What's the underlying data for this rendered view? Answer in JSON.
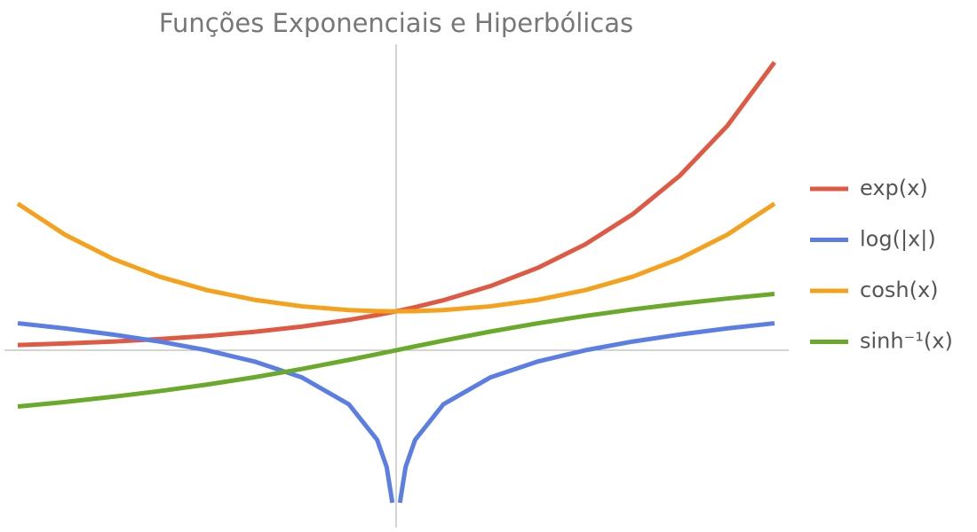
{
  "chart_data": {
    "type": "line",
    "title": "Funções Exponenciais e Hiperbólicas",
    "x": [
      -2,
      -1.75,
      -1.5,
      -1.25,
      -1,
      -0.75,
      -0.5,
      -0.25,
      -0.1,
      -0.05,
      -0.02,
      0,
      0.02,
      0.05,
      0.1,
      0.25,
      0.5,
      0.75,
      1,
      1.25,
      1.5,
      1.75,
      2
    ],
    "series": [
      {
        "name": "exp(x)",
        "color": "#e05a43",
        "values": [
          0.135,
          0.174,
          0.223,
          0.287,
          0.368,
          0.472,
          0.607,
          0.779,
          0.905,
          0.951,
          0.98,
          1,
          1.02,
          1.051,
          1.105,
          1.284,
          1.649,
          2.117,
          2.718,
          3.49,
          4.482,
          5.755,
          7.389
        ]
      },
      {
        "name": "log(|x|)",
        "color": "#5b7ee5",
        "values": [
          0.693,
          0.56,
          0.405,
          0.223,
          0,
          -0.288,
          -0.693,
          -1.386,
          -2.303,
          -2.996,
          -3.912,
          null,
          -3.912,
          -2.996,
          -2.303,
          -1.386,
          -0.693,
          -0.288,
          0,
          0.223,
          0.405,
          0.56,
          0.693
        ]
      },
      {
        "name": "cosh(x)",
        "color": "#f5a11c",
        "values": [
          3.762,
          2.964,
          2.352,
          1.888,
          1.543,
          1.295,
          1.128,
          1.031,
          1.005,
          1.001,
          1,
          1,
          1,
          1.001,
          1.005,
          1.031,
          1.128,
          1.295,
          1.543,
          1.888,
          2.352,
          2.964,
          3.762
        ]
      },
      {
        "name": "sinh⁻¹(x)",
        "color": "#6aaa2a",
        "values": [
          -1.444,
          -1.327,
          -1.195,
          -1.048,
          -0.881,
          -0.693,
          -0.481,
          -0.247,
          -0.0998,
          -0.05,
          -0.02,
          0,
          0.02,
          0.05,
          0.0998,
          0.247,
          0.481,
          0.693,
          0.881,
          1.048,
          1.195,
          1.327,
          1.444
        ]
      }
    ],
    "xlim": [
      -2,
      2
    ],
    "ylim": [
      -4.55,
      7.85
    ],
    "legend": "right"
  }
}
